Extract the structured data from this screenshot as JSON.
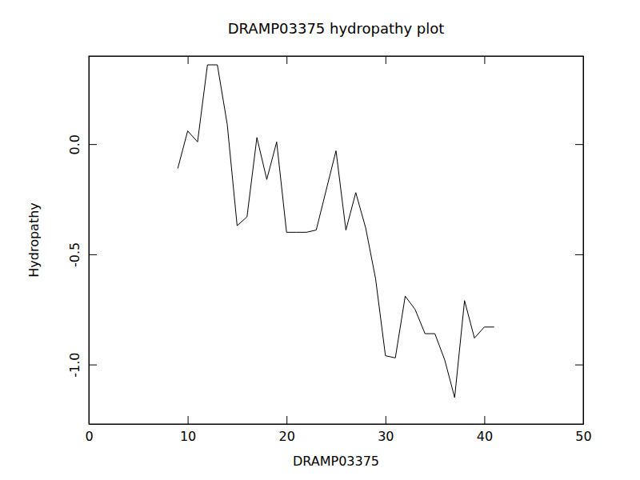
{
  "chart_data": {
    "type": "line",
    "title": "DRAMP03375 hydropathy plot",
    "x_label": "DRAMP03375",
    "y_label": "Hydropathy",
    "x": [
      9,
      10,
      11,
      12,
      13,
      14,
      15,
      16,
      17,
      18,
      19,
      20,
      21,
      22,
      23,
      24,
      25,
      26,
      27,
      28,
      29,
      30,
      31,
      32,
      33,
      34,
      35,
      36,
      37,
      38,
      39,
      40,
      41
    ],
    "values": [
      -0.11,
      0.06,
      0.01,
      0.36,
      0.36,
      0.09,
      -0.37,
      -0.33,
      0.03,
      -0.16,
      0.01,
      -0.4,
      -0.4,
      -0.4,
      -0.39,
      -0.21,
      -0.03,
      -0.39,
      -0.22,
      -0.38,
      -0.61,
      -0.96,
      -0.97,
      -0.69,
      -0.75,
      -0.86,
      -0.86,
      -0.98,
      -1.15,
      -0.71,
      -0.88,
      -0.83,
      -0.83
    ],
    "color": "#000000",
    "xlim": [
      0,
      50
    ],
    "xticks": [
      0,
      10,
      20,
      30,
      40,
      50
    ],
    "ylim": [
      -1.27,
      0.4
    ],
    "yticks": [
      {
        "value": -1.0,
        "label": "-1.0"
      },
      {
        "value": -0.5,
        "label": "-0.5"
      },
      {
        "value": 0.0,
        "label": "0.0"
      }
    ],
    "grid": false
  }
}
